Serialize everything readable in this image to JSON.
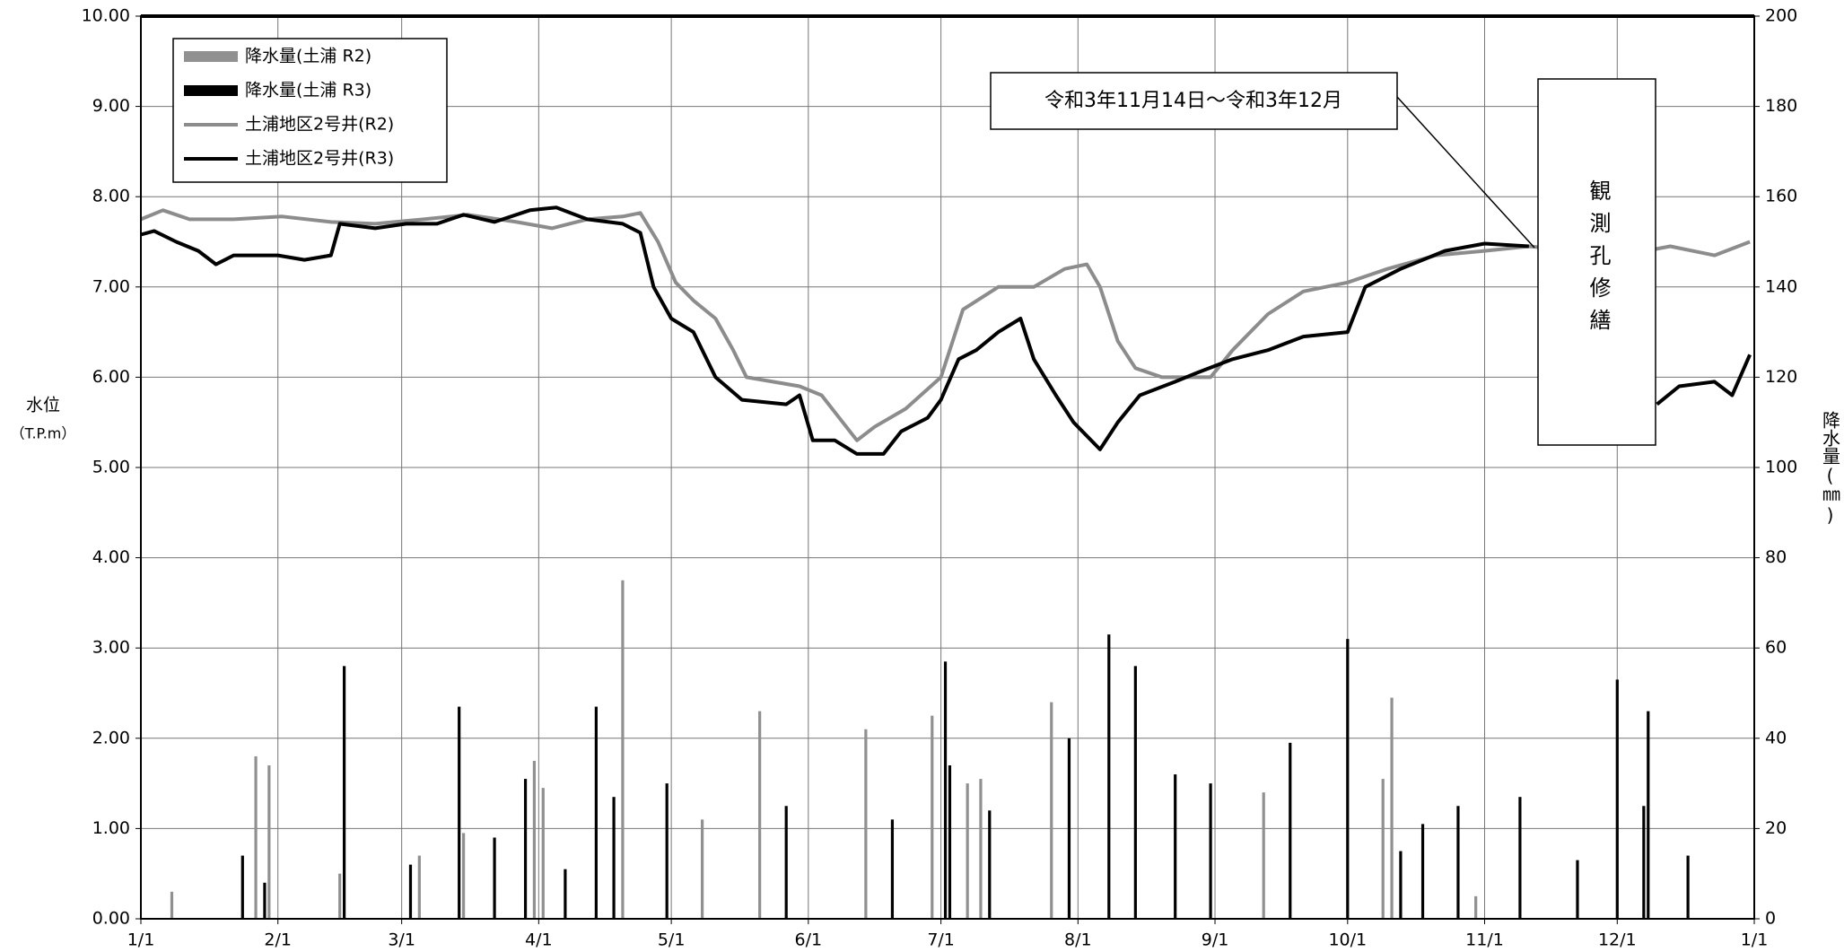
{
  "chart_data": {
    "type": "line",
    "legend": "upper left",
    "grid": true,
    "ylabel": "水位",
    "ylabel_unit": "（T.P.m）",
    "y2label": "降水量(㎜)",
    "annotations": [
      "令和3年11月14日～令和3年12月",
      "観測孔修繕"
    ],
    "xlim": [
      0,
      365
    ],
    "xticks": [
      {
        "value": 0,
        "label": "1/1"
      },
      {
        "value": 31,
        "label": "2/1"
      },
      {
        "value": 59,
        "label": "3/1"
      },
      {
        "value": 90,
        "label": "4/1"
      },
      {
        "value": 120,
        "label": "5/1"
      },
      {
        "value": 151,
        "label": "6/1"
      },
      {
        "value": 181,
        "label": "7/1"
      },
      {
        "value": 212,
        "label": "8/1"
      },
      {
        "value": 243,
        "label": "9/1"
      },
      {
        "value": 273,
        "label": "10/1"
      },
      {
        "value": 304,
        "label": "11/1"
      },
      {
        "value": 334,
        "label": "12/1"
      },
      {
        "value": 365,
        "label": "1/1"
      }
    ],
    "ylim": [
      0,
      10
    ],
    "yticks": [
      {
        "value": 0,
        "label": "0.00"
      },
      {
        "value": 1,
        "label": "1.00"
      },
      {
        "value": 2,
        "label": "2.00"
      },
      {
        "value": 3,
        "label": "3.00"
      },
      {
        "value": 4,
        "label": "4.00"
      },
      {
        "value": 5,
        "label": "5.00"
      },
      {
        "value": 6,
        "label": "6.00"
      },
      {
        "value": 7,
        "label": "7.00"
      },
      {
        "value": 8,
        "label": "8.00"
      },
      {
        "value": 9,
        "label": "9.00"
      },
      {
        "value": 10,
        "label": "10.00"
      }
    ],
    "y2lim": [
      0,
      200
    ],
    "y2ticks": [
      0,
      20,
      40,
      60,
      80,
      100,
      120,
      140,
      160,
      180,
      200
    ],
    "series": [
      {
        "name": "降水量(土浦 R2)",
        "type": "bar",
        "axis": "y2",
        "color": "#909090",
        "x": [
          7,
          26,
          29,
          45,
          63,
          73,
          89,
          91,
          109,
          127,
          140,
          164,
          179,
          187,
          190,
          206,
          254,
          281,
          283,
          302
        ],
        "values": [
          6,
          36,
          34,
          10,
          14,
          19,
          35,
          29,
          75,
          22,
          46,
          42,
          45,
          30,
          31,
          48,
          28,
          31,
          49,
          5
        ]
      },
      {
        "name": "降水量(土浦 R3)",
        "type": "bar",
        "axis": "y2",
        "color": "#000000",
        "x": [
          23,
          28,
          46,
          61,
          72,
          80,
          87,
          96,
          103,
          107,
          119,
          146,
          170,
          182,
          183,
          192,
          210,
          219,
          225,
          234,
          242,
          260,
          273,
          285,
          290,
          298,
          312,
          325,
          334,
          340,
          341,
          350
        ],
        "values": [
          14,
          8,
          56,
          12,
          47,
          18,
          31,
          11,
          47,
          27,
          30,
          25,
          22,
          57,
          34,
          24,
          40,
          63,
          56,
          32,
          30,
          39,
          62,
          15,
          21,
          25,
          27,
          13,
          53,
          25,
          46,
          14
        ]
      },
      {
        "name": "土浦地区2号井(R2)",
        "type": "line",
        "color": "#8c8c8c",
        "x": [
          0,
          5,
          11,
          21,
          32,
          43,
          53,
          64,
          74,
          85,
          93,
          101,
          109,
          113,
          117,
          121,
          125,
          130,
          134,
          137,
          149,
          154,
          158,
          162,
          166,
          173,
          181,
          186,
          194,
          202,
          209,
          214,
          217,
          221,
          225,
          231,
          242,
          247,
          255,
          263,
          273,
          282,
          293,
          304,
          314,
          325,
          335,
          346,
          356,
          364
        ],
        "values": [
          7.75,
          7.85,
          7.75,
          7.75,
          7.78,
          7.72,
          7.7,
          7.75,
          7.8,
          7.72,
          7.65,
          7.75,
          7.78,
          7.82,
          7.5,
          7.05,
          6.85,
          6.65,
          6.3,
          6.0,
          5.9,
          5.8,
          5.55,
          5.3,
          5.45,
          5.65,
          6.0,
          6.75,
          7.0,
          7.0,
          7.2,
          7.25,
          7.0,
          6.4,
          6.1,
          6.0,
          6.0,
          6.3,
          6.7,
          6.95,
          7.05,
          7.2,
          7.35,
          7.4,
          7.45,
          7.4,
          7.35,
          7.45,
          7.35,
          7.5
        ]
      },
      {
        "name": "土浦地区2号井(R3)",
        "type": "line",
        "color": "#000000",
        "x": [
          0,
          3,
          8,
          13,
          17,
          21,
          31,
          37,
          43,
          45,
          53,
          60,
          67,
          73,
          80,
          88,
          94,
          101,
          109,
          113,
          116,
          120,
          125,
          130,
          136,
          146,
          149,
          152,
          157,
          162,
          168,
          172,
          178,
          181,
          185,
          189,
          194,
          199,
          202,
          207,
          211,
          217,
          221,
          226,
          234,
          239,
          247,
          255,
          263,
          273,
          277,
          285,
          295,
          304,
          314,
          330,
          343,
          348,
          356,
          360,
          364
        ],
        "values": [
          7.58,
          7.62,
          7.5,
          7.4,
          7.25,
          7.35,
          7.35,
          7.3,
          7.35,
          7.7,
          7.65,
          7.7,
          7.7,
          7.8,
          7.72,
          7.85,
          7.88,
          7.75,
          7.7,
          7.6,
          7.0,
          6.65,
          6.5,
          6.0,
          5.75,
          5.7,
          5.8,
          5.3,
          5.3,
          5.15,
          5.15,
          5.4,
          5.55,
          5.75,
          6.2,
          6.3,
          6.5,
          6.65,
          6.2,
          5.8,
          5.5,
          5.2,
          5.5,
          5.8,
          5.95,
          6.05,
          6.2,
          6.3,
          6.45,
          6.5,
          7.0,
          7.2,
          7.4,
          7.48,
          7.45,
          null,
          5.7,
          5.9,
          5.95,
          5.8,
          6.25
        ]
      }
    ]
  }
}
